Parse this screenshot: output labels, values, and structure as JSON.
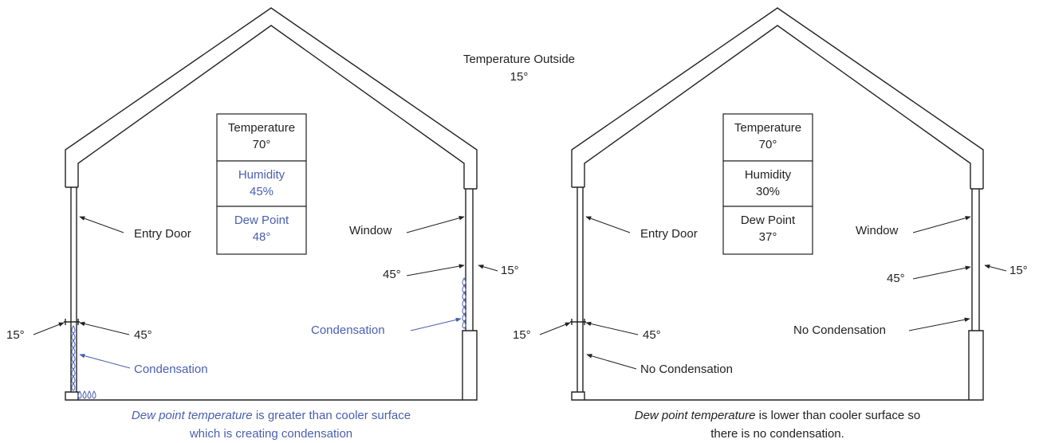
{
  "outside": {
    "label": "Temperature Outside",
    "value": "15°"
  },
  "panels": [
    {
      "box": [
        {
          "label": "Temperature",
          "value": "70°"
        },
        {
          "label": "Humidity",
          "value": "45%"
        },
        {
          "label": "Dew Point",
          "value": "48°"
        }
      ],
      "labels": {
        "door": "Entry Door",
        "window": "Window",
        "window_inside": "45°",
        "window_outside": "15°",
        "door_outside": "15°",
        "door_inside": "45°",
        "window_state": "Condensation",
        "door_state": "Condensation"
      },
      "caption": {
        "emphasis": "Dew point temperature",
        "rest": " is greater than cooler surface",
        "line2": "which is creating condensation"
      }
    },
    {
      "box": [
        {
          "label": "Temperature",
          "value": "70°"
        },
        {
          "label": "Humidity",
          "value": "30%"
        },
        {
          "label": "Dew Point",
          "value": "37°"
        }
      ],
      "labels": {
        "door": "Entry Door",
        "window": "Window",
        "window_inside": "45°",
        "window_outside": "15°",
        "door_outside": "15°",
        "door_inside": "45°",
        "window_state": "No Condensation",
        "door_state": "No Condensation"
      },
      "caption": {
        "emphasis": "Dew point temperature",
        "rest": " is lower than cooler surface so",
        "line2": "there is no condensation."
      }
    }
  ]
}
